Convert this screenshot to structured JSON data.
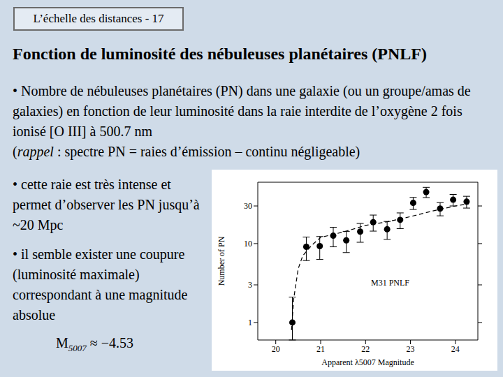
{
  "header": "L’échelle des distances - 17",
  "title": "Fonction de luminosité des nébuleuses planétaires (PNLF)",
  "bullet": "•",
  "bullets": [
    {
      "lines": [
        [
          {
            "text": "Nombre de nébuleuses planétaires (PN) dans une galaxie (ou un groupe/amas de galaxies) en fonction de leur luminosité dans la raie interdite de l’oxygène 2 fois ionisé [O III] à 500.7 nm"
          }
        ],
        [
          {
            "text": "("
          },
          {
            "text": "rappel",
            "italic": true
          },
          {
            "text": " : spectre PN = raies d’émission – continu négligeable)"
          }
        ]
      ]
    },
    {
      "lines": [
        [
          {
            "text": "cette raie est très intense et permet d’observer les PN jusqu’à ~20 Mpc"
          }
        ]
      ]
    },
    {
      "lines": [
        [
          {
            "text": "il semble exister une coupure (luminosité maximale) correspondant à une magnitude absolue"
          }
        ]
      ]
    }
  ],
  "formula": {
    "symbol": "M",
    "subscript": "5007",
    "relation": " ≈ −4.53"
  },
  "chart_data": {
    "type": "scatter",
    "x_label": "Apparent λ5007 Magnitude",
    "y_label": "Number of PN",
    "annotation": "M31 PNLF",
    "log": "y",
    "xlim": [
      19.6,
      24.5
    ],
    "ylim": [
      0.6,
      60
    ],
    "xticks": [
      20,
      21,
      22,
      23,
      24
    ],
    "yticks": [
      1,
      3,
      10,
      30
    ],
    "series": [
      {
        "type": "scatter",
        "marker": "circle",
        "color": "#000000",
        "x": [
          20.37,
          20.68,
          20.98,
          21.28,
          21.57,
          21.88,
          22.17,
          22.48,
          22.77,
          23.06,
          23.35,
          23.66,
          23.95,
          24.25
        ],
        "values": [
          1,
          9.1,
          9.3,
          12.6,
          11,
          14.2,
          18.7,
          15.2,
          20,
          32.8,
          45,
          27.8,
          36,
          34
        ],
        "errors": [
          [
            0.4,
            1.1
          ],
          [
            3,
            3
          ],
          [
            3,
            3
          ],
          [
            3.5,
            3.5
          ],
          [
            3.3,
            3.3
          ],
          [
            3.8,
            3.8
          ],
          [
            4.3,
            4.3
          ],
          [
            3.9,
            3.9
          ],
          [
            4.5,
            4.5
          ],
          [
            5.7,
            5.7
          ],
          [
            6.7,
            6.7
          ],
          [
            5.3,
            5.3
          ],
          [
            6,
            6
          ],
          [
            5.8,
            5.8
          ]
        ]
      },
      {
        "type": "line",
        "line_style": "dashed",
        "color": "#000000",
        "x": [
          20.35,
          20.4,
          20.5,
          20.6,
          20.8,
          21,
          21.5,
          22,
          22.5,
          23,
          23.5,
          24,
          24.3
        ],
        "values": [
          0.8,
          2,
          4.8,
          7,
          9.5,
          12,
          14,
          17,
          19,
          22,
          26,
          30,
          32
        ]
      }
    ]
  }
}
